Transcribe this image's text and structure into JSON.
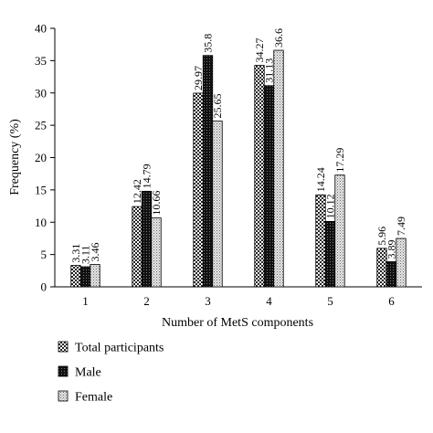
{
  "chart_data": {
    "type": "bar",
    "title": "",
    "xlabel": "Number of MetS components",
    "ylabel": "Frequency (%)",
    "ylim": [
      0,
      40
    ],
    "yticks": [
      0,
      5,
      10,
      15,
      20,
      25,
      30,
      35,
      40
    ],
    "categories": [
      "1",
      "2",
      "3",
      "4",
      "5",
      "6"
    ],
    "grid": false,
    "legend_position": "bottom-left",
    "series": [
      {
        "name": "Total participants",
        "values": [
          3.31,
          12.42,
          29.97,
          34.27,
          14.24,
          5.96
        ],
        "labels": [
          "3.31",
          "12.42",
          "29.97",
          "34.27",
          "14.24",
          "5.96"
        ],
        "pattern": "checker-fine"
      },
      {
        "name": "Male",
        "values": [
          3.11,
          14.79,
          35.8,
          31.13,
          10.12,
          3.89
        ],
        "labels": [
          "3.11",
          "14.79",
          "35.8",
          "31.13",
          "10.12",
          "3.89"
        ],
        "pattern": "checker-dense"
      },
      {
        "name": "Female",
        "values": [
          3.46,
          10.66,
          25.65,
          36.6,
          17.29,
          7.49
        ],
        "labels": [
          "3.46",
          "10.66",
          "25.65",
          "36.6",
          "17.29",
          "7.49"
        ],
        "pattern": "dotted-light"
      }
    ]
  }
}
